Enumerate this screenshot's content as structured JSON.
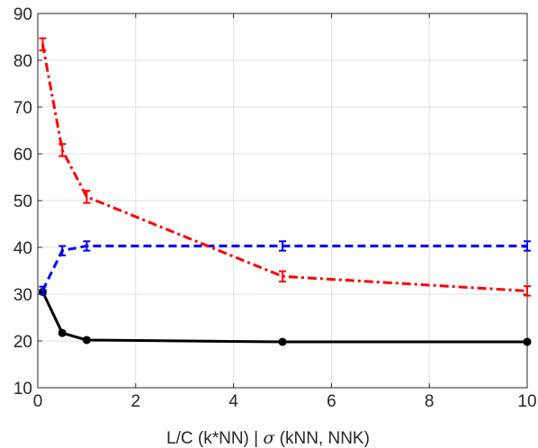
{
  "chart_data": {
    "type": "line",
    "title": "",
    "xlabel_parts": [
      "L/C (k*NN) |  ",
      "σ",
      " (kNN, NNK)"
    ],
    "ylabel": "",
    "xlim": [
      0,
      10
    ],
    "ylim": [
      10,
      90
    ],
    "x_ticks": [
      0,
      2,
      4,
      6,
      8,
      10
    ],
    "y_ticks": [
      10,
      20,
      30,
      40,
      50,
      60,
      70,
      80,
      90
    ],
    "grid": true,
    "legend": "none",
    "series": [
      {
        "color": "#000000",
        "line_style": "solid",
        "marker": "circle",
        "x": [
          0.1,
          0.5,
          1,
          5,
          10
        ],
        "y": [
          30.5,
          21.7,
          20.2,
          19.8,
          19.8
        ],
        "err": [
          0.4,
          0.3,
          0.3,
          0.3,
          0.3
        ]
      },
      {
        "color": "#0000ff",
        "line_style": "dashed",
        "marker": "errorbar",
        "x": [
          0.1,
          0.5,
          1,
          5,
          10
        ],
        "y": [
          30.8,
          39.3,
          40.3,
          40.3,
          40.3
        ],
        "err": [
          0.8,
          1.0,
          1.0,
          1.0,
          1.0
        ]
      },
      {
        "color": "#ff0000",
        "line_style": "dashdot",
        "marker": "errorbar",
        "x": [
          0.1,
          0.5,
          1,
          5,
          10
        ],
        "y": [
          83.4,
          60.8,
          50.8,
          33.8,
          30.7
        ],
        "err": [
          1.3,
          1.3,
          1.3,
          1.1,
          1.0
        ]
      }
    ]
  }
}
